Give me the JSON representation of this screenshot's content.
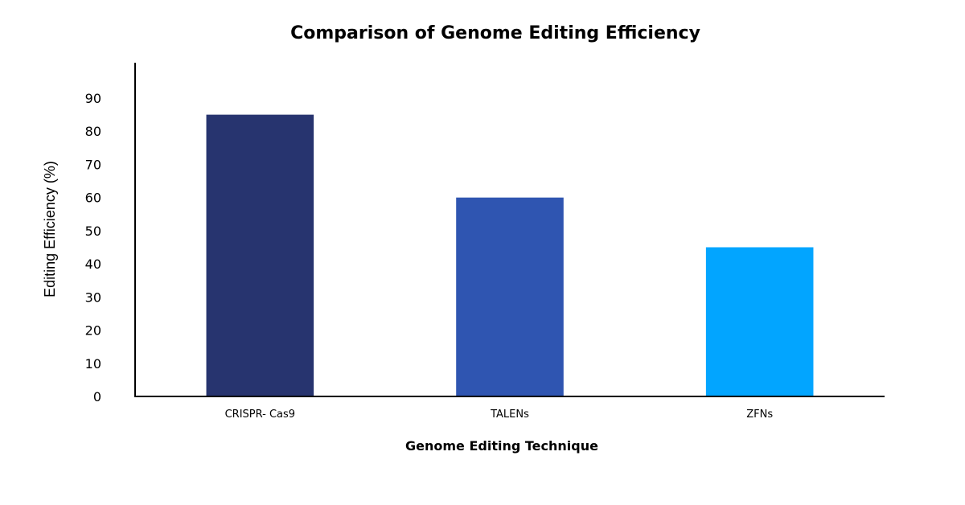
{
  "chart_data": {
    "type": "bar",
    "title": "Comparison of Genome Editing Efficiency",
    "xlabel": "Genome Editing Technique",
    "ylabel": "Editing Efficiency (%)",
    "categories": [
      "CRISPR- Cas9",
      "TALENs",
      "ZFNs"
    ],
    "values": [
      85,
      60,
      45
    ],
    "colors": [
      "#27346f",
      "#2f55b1",
      "#02a5ff"
    ],
    "ylim": [
      0,
      90
    ],
    "yticks": [
      "0",
      "10",
      "20",
      "30",
      "40",
      "50",
      "60",
      "70",
      "80",
      "90"
    ],
    "grid": false,
    "legend": "none"
  }
}
